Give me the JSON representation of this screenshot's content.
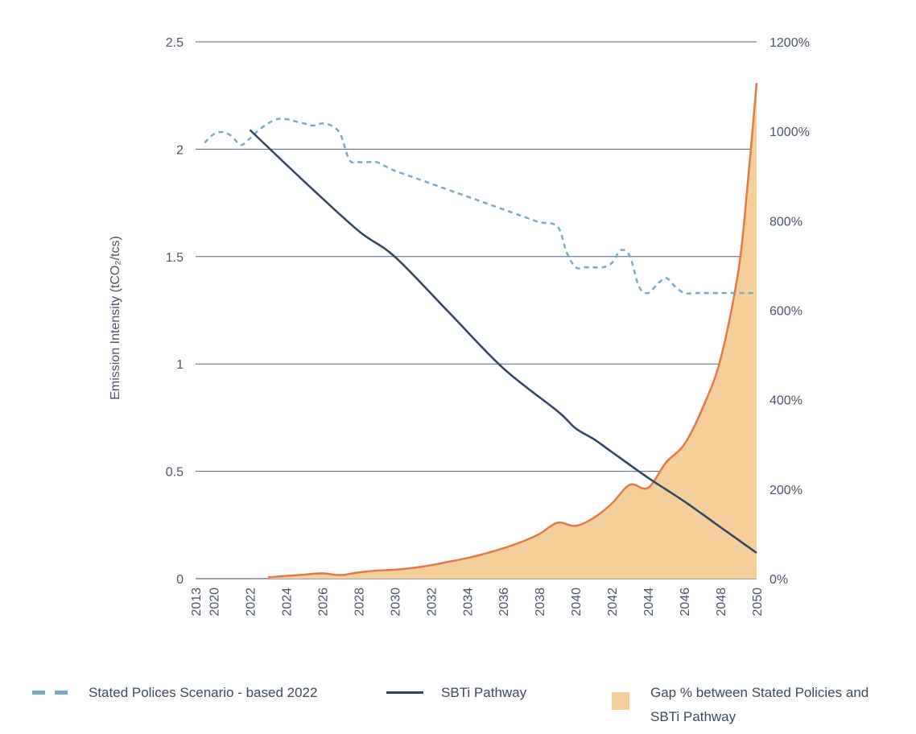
{
  "chart_data": {
    "type": "line",
    "ylabel": "Emission Intensity (tCO₂/tcs)",
    "x_ticks": [
      "2013",
      "2020",
      "2022",
      "2024",
      "2026",
      "2028",
      "2030",
      "2032",
      "2034",
      "2036",
      "2038",
      "2040",
      "2042",
      "2044",
      "2046",
      "2048",
      "2050"
    ],
    "y_left_ticks": [
      "0",
      "0.5",
      "1",
      "1.5",
      "2",
      "2.5"
    ],
    "y_left_lim": [
      0,
      2.5
    ],
    "y_right_ticks": [
      "0%",
      "200%",
      "400%",
      "600%",
      "800%",
      "1000%",
      "1200%"
    ],
    "y_right_lim": [
      0,
      1200
    ],
    "grid": "horizontal",
    "legend_position": "bottom",
    "series": [
      {
        "name": "Stated Polices Scenario - based 2022",
        "axis": "left",
        "style": "dashed",
        "color": "#7aa9c2",
        "x": [
          2019.5,
          2020,
          2020.5,
          2021,
          2021.5,
          2022,
          2022.5,
          2023,
          2023.5,
          2024,
          2024.5,
          2025,
          2025.5,
          2026,
          2026.5,
          2027,
          2027.5,
          2028,
          2028.5,
          2029,
          2029.5,
          2030,
          2031,
          2032,
          2033,
          2034,
          2035,
          2036,
          2037,
          2038,
          2039,
          2039.5,
          2040,
          2040.5,
          2041,
          2041.5,
          2042,
          2042.5,
          2043,
          2043.5,
          2044,
          2044.5,
          2045,
          2045.5,
          2046,
          2046.5,
          2047,
          2048,
          2049,
          2050
        ],
        "values": [
          2.03,
          2.07,
          2.08,
          2.06,
          2.02,
          2.05,
          2.09,
          2.12,
          2.14,
          2.14,
          2.13,
          2.12,
          2.11,
          2.12,
          2.11,
          2.07,
          1.95,
          1.94,
          1.94,
          1.94,
          1.92,
          1.9,
          1.87,
          1.84,
          1.81,
          1.78,
          1.75,
          1.72,
          1.69,
          1.66,
          1.64,
          1.52,
          1.45,
          1.45,
          1.45,
          1.45,
          1.47,
          1.53,
          1.5,
          1.36,
          1.33,
          1.37,
          1.4,
          1.36,
          1.33,
          1.33,
          1.33,
          1.33,
          1.33,
          1.33
        ]
      },
      {
        "name": "SBTi Pathway",
        "axis": "left",
        "style": "solid",
        "color": "#2f4660",
        "x": [
          2022,
          2025,
          2028,
          2030,
          2033,
          2036,
          2039,
          2040,
          2041,
          2042,
          2044,
          2046,
          2048,
          2050
        ],
        "values": [
          2.09,
          1.85,
          1.62,
          1.5,
          1.24,
          0.98,
          0.78,
          0.7,
          0.65,
          0.59,
          0.47,
          0.36,
          0.24,
          0.12
        ]
      },
      {
        "name": "Gap % between Stated Policies and SBTi Pathway",
        "axis": "right",
        "type": "area",
        "color": "#f5cf9a",
        "line_color": "#e07a4a",
        "x": [
          2023,
          2024,
          2025,
          2026,
          2027,
          2028,
          2029,
          2030,
          2031,
          2032,
          2033,
          2034,
          2035,
          2036,
          2037,
          2038,
          2039,
          2040,
          2041,
          2042,
          2043,
          2044,
          2045,
          2046,
          2047,
          2048,
          2049,
          2049.5,
          2050
        ],
        "values": [
          3,
          6,
          9,
          12,
          8,
          14,
          18,
          20,
          24,
          30,
          38,
          46,
          56,
          68,
          82,
          100,
          125,
          118,
          136,
          168,
          210,
          203,
          260,
          300,
          380,
          490,
          690,
          880,
          1108
        ]
      }
    ],
    "legend": [
      {
        "label": "Stated Polices Scenario - based 2022",
        "marker": "dash"
      },
      {
        "label": "SBTi Pathway",
        "marker": "line"
      },
      {
        "label": "Gap % between Stated Policies and SBTi Pathway",
        "label_lines": [
          "Gap % between Stated Policies and",
          "SBTi Pathway"
        ],
        "marker": "box"
      }
    ]
  }
}
